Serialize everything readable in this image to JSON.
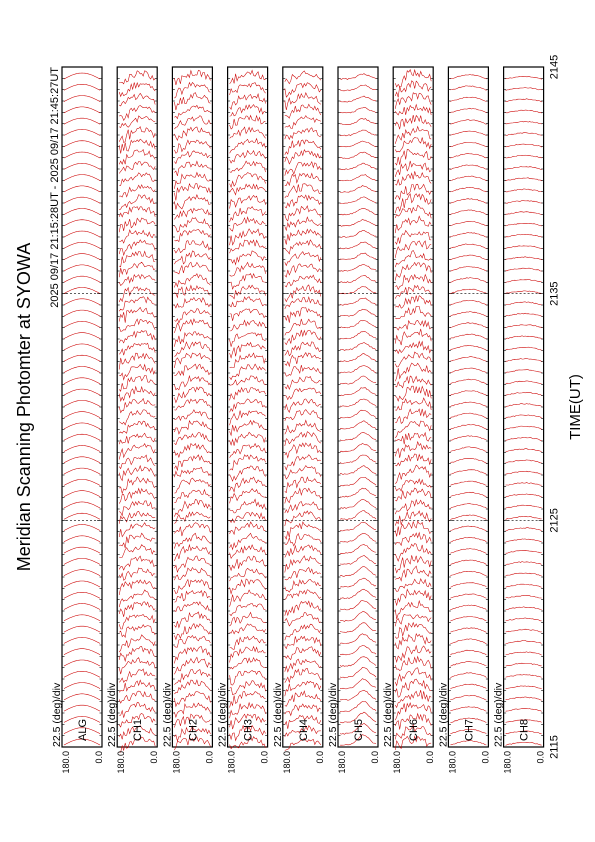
{
  "page": {
    "title": "Meridian Scanning Photomter at SYOWA",
    "time_range": "2025 09/17 21:15:28UT - 2025 09/17 21:45:27UT",
    "xlabel": "TIME(UT)"
  },
  "chart_data": {
    "type": "line",
    "title": "Meridian Scanning Photomter at SYOWA",
    "subtitle": "2025 09/17 21:15:28UT - 2025 09/17 21:45:27UT",
    "xlabel": "TIME(UT)",
    "x_ticks": [
      "2115",
      "2125",
      "2135",
      "2145"
    ],
    "x_range": [
      "2115",
      "2145"
    ],
    "orientation": "rotated 90 degrees counter-clockwise",
    "line_color": "#cc0000",
    "panels": [
      {
        "label": "ALG",
        "scale": "22.5 (deg)/div",
        "y_max_label": "180.0",
        "y_min_label": "0.0",
        "character": "uniform sine (calibration)"
      },
      {
        "label": "CH1",
        "scale": "22.5 (deg)/div",
        "y_max_label": "180.0",
        "y_min_label": "0.0",
        "character": "noisy"
      },
      {
        "label": "CH2",
        "scale": "22.5 (deg)/div",
        "y_max_label": "180.0",
        "y_min_label": "0.0",
        "character": "noisy"
      },
      {
        "label": "CH3",
        "scale": "22.5 (deg)/div",
        "y_max_label": "180.0",
        "y_min_label": "0.0",
        "character": "noisy"
      },
      {
        "label": "CH4",
        "scale": "22.5 (deg)/div",
        "y_max_label": "180.0",
        "y_min_label": "0.0",
        "character": "moderate"
      },
      {
        "label": "CH5",
        "scale": "22.5 (deg)/div",
        "y_max_label": "180.0",
        "y_min_label": "0.0",
        "character": "smooth peaked"
      },
      {
        "label": "CH6",
        "scale": "22.5 (deg)/div",
        "y_max_label": "180.0",
        "y_min_label": "0.0",
        "character": "noisy peaked"
      },
      {
        "label": "CH7",
        "scale": "22.5 (deg)/div",
        "y_max_label": "180.0",
        "y_min_label": "0.0",
        "character": "smooth"
      },
      {
        "label": "CH8",
        "scale": "22.5 (deg)/div",
        "y_max_label": "180.0",
        "y_min_label": "0.0",
        "character": "very smooth"
      }
    ]
  }
}
